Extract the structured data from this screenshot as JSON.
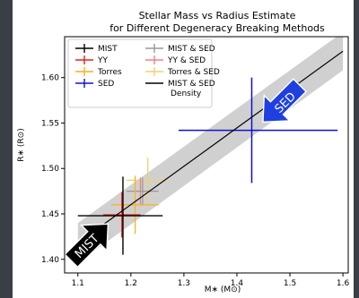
{
  "chart_data": {
    "type": "scatter",
    "title": "Stellar Mass vs Radius Estimate",
    "subtitle": "for Different Degeneracy Breaking Methods",
    "xlabel": "M∗ (M⊙)",
    "ylabel": "R∗ (R⊙)",
    "xlim": [
      1.075,
      1.61
    ],
    "ylim": [
      1.385,
      1.645
    ],
    "x_ticks": [
      1.1,
      1.2,
      1.3,
      1.4,
      1.5,
      1.6
    ],
    "x_tick_labels": [
      "1.1",
      "1.2",
      "1.3",
      "1.4",
      "1.5",
      "1.6"
    ],
    "y_ticks": [
      1.4,
      1.45,
      1.5,
      1.55,
      1.6
    ],
    "y_tick_labels": [
      "1.40",
      "1.45",
      "1.50",
      "1.55",
      "1.60"
    ],
    "grid": false,
    "legend_position": "top-left",
    "series": [
      {
        "name": "MIST",
        "color": "#000000",
        "x": 1.185,
        "y": 1.448,
        "xerr": [
          0.085,
          0.075
        ],
        "yerr": [
          0.043,
          0.043
        ]
      },
      {
        "name": "YY",
        "color": "#e8201c",
        "x": 1.183,
        "y": 1.449,
        "xerr": [
          0.035,
          0.035
        ],
        "yerr": [
          0.025,
          0.025
        ]
      },
      {
        "name": "Torres",
        "color": "#f2b41e",
        "x": 1.208,
        "y": 1.46,
        "xerr": [
          0.045,
          0.045
        ],
        "yerr": [
          0.032,
          0.032
        ]
      },
      {
        "name": "SED",
        "color": "#1010d0",
        "x": 1.428,
        "y": 1.542,
        "xerr": [
          0.138,
          0.162
        ],
        "yerr": [
          0.058,
          0.058
        ]
      },
      {
        "name": "MIST & SED",
        "color": "#9a9a9a",
        "x": 1.222,
        "y": 1.475,
        "xerr": [
          0.03,
          0.03
        ],
        "yerr": [
          0.015,
          0.015
        ]
      },
      {
        "name": "YY & SED",
        "color": "#f08080",
        "x": 1.218,
        "y": 1.475,
        "xerr": [
          0.025,
          0.025
        ],
        "yerr": [
          0.015,
          0.015
        ]
      },
      {
        "name": "Torres & SED",
        "color": "#f0d070",
        "x": 1.232,
        "y": 1.487,
        "xerr": [
          0.04,
          0.04
        ],
        "yerr": [
          0.025,
          0.025
        ]
      }
    ],
    "density_line": {
      "name": "MIST & SED\nDensity",
      "color": "#000000",
      "x": [
        1.1,
        1.6
      ],
      "y": [
        1.418,
        1.629
      ]
    },
    "density_band": {
      "color": "#d0d0d0",
      "x": [
        1.1,
        1.6
      ],
      "y_low": [
        1.396,
        1.608
      ],
      "y_high": [
        1.44,
        1.65
      ]
    },
    "annotations": [
      {
        "text": "MIST",
        "color": "#000000",
        "text_color": "#ffffff",
        "x": 1.121,
        "y": 1.418,
        "direction": "up-right"
      },
      {
        "text": "SED",
        "color": "#1f3fe0",
        "text_color": "#ffffff",
        "x": 1.485,
        "y": 1.572,
        "direction": "down-left"
      }
    ]
  }
}
